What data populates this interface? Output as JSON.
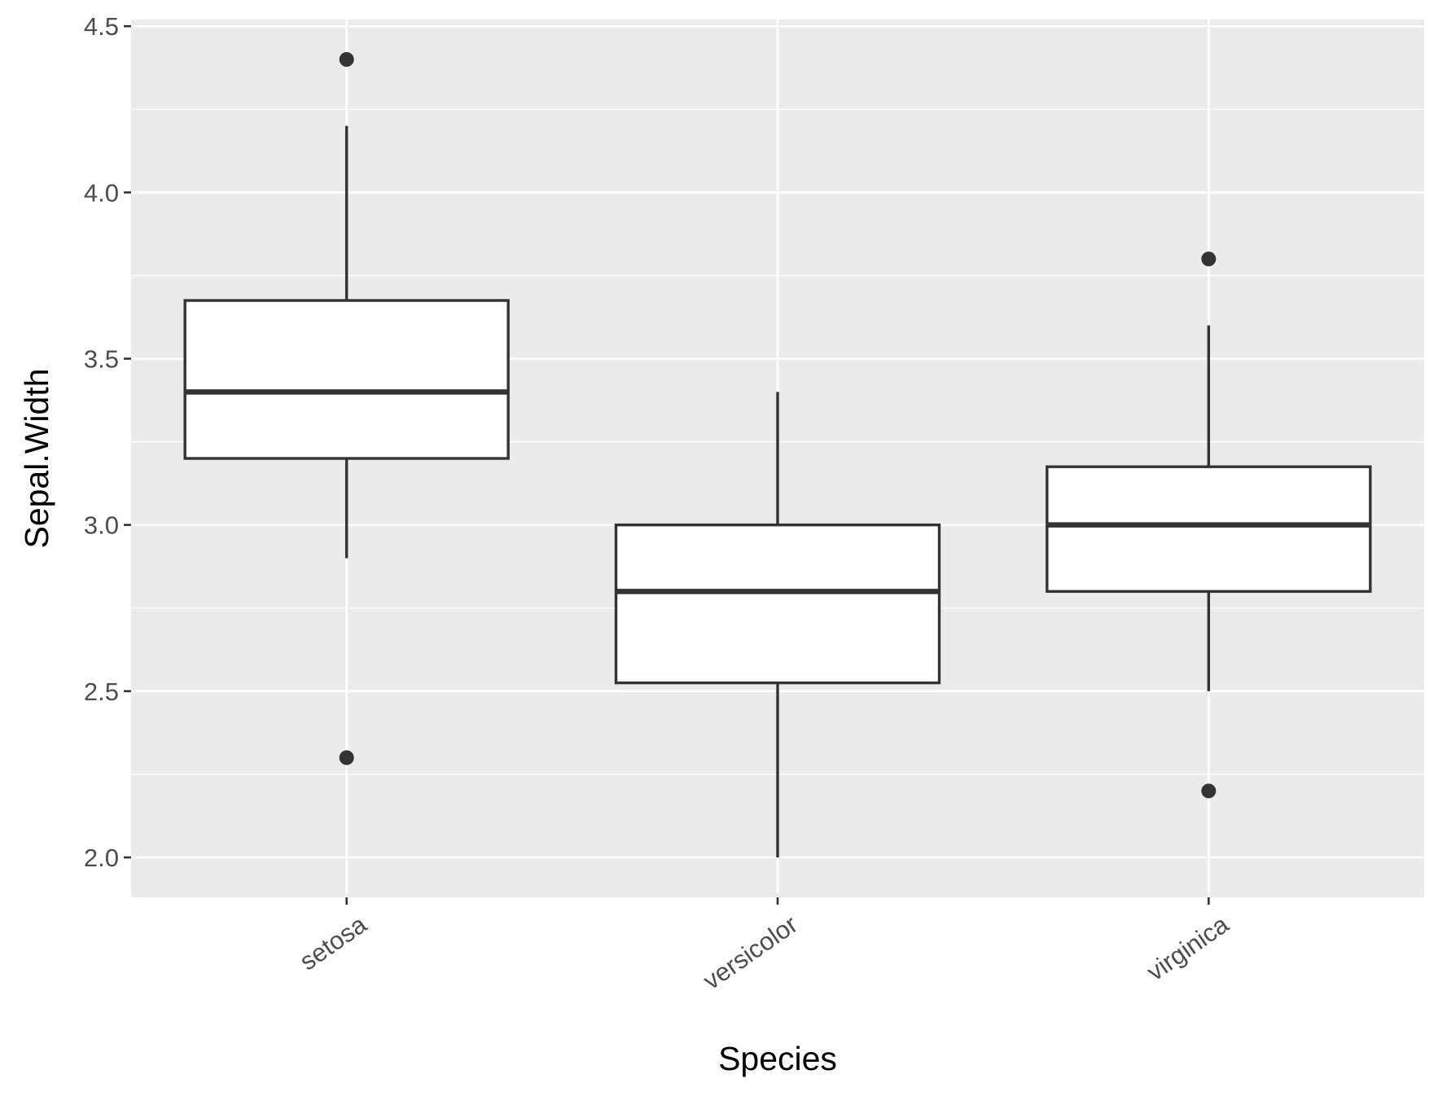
{
  "chart_data": {
    "type": "box",
    "xlabel": "Species",
    "ylabel": "Sepal.Width",
    "ylim": [
      1.88,
      4.52
    ],
    "yticks": [
      2.0,
      2.5,
      3.0,
      3.5,
      4.0,
      4.5
    ],
    "ytick_labels": [
      "2.0",
      "2.5",
      "3.0",
      "3.5",
      "4.0",
      "4.5"
    ],
    "categories": [
      "setosa",
      "versicolor",
      "virginica"
    ],
    "x_tick_label_rotation_deg": 35,
    "grid": true,
    "background_color": "#ebebeb",
    "grid_color": "#ffffff",
    "box_fill": "#ffffff",
    "line_color": "#333333",
    "boxes": [
      {
        "category": "setosa",
        "whisker_low": 2.9,
        "q1": 3.2,
        "median": 3.4,
        "q3": 3.675,
        "whisker_high": 4.2,
        "outliers": [
          4.4,
          2.3
        ]
      },
      {
        "category": "versicolor",
        "whisker_low": 2.0,
        "q1": 2.525,
        "median": 2.8,
        "q3": 3.0,
        "whisker_high": 3.4,
        "outliers": []
      },
      {
        "category": "virginica",
        "whisker_low": 2.5,
        "q1": 2.8,
        "median": 3.0,
        "q3": 3.175,
        "whisker_high": 3.6,
        "outliers": [
          3.8,
          2.2
        ]
      }
    ]
  }
}
